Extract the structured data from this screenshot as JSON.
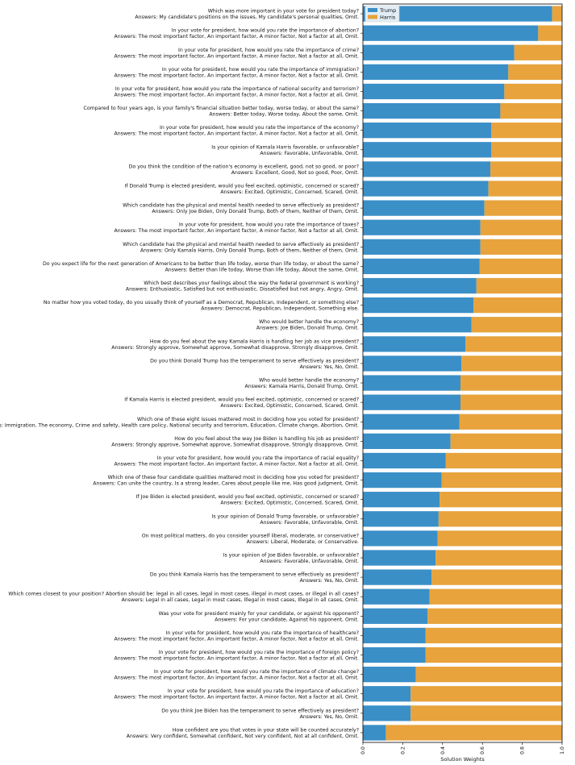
{
  "chart_data": {
    "type": "bar",
    "orientation": "horizontal",
    "stacked": true,
    "xlabel": "Solution Weights",
    "ylabel": "",
    "xlim": [
      0,
      1
    ],
    "xticks": [
      "0.0",
      "0.2",
      "0.4",
      "0.6",
      "0.8",
      "1.0"
    ],
    "legend_position": "top-left",
    "grid": false,
    "series": [
      {
        "name": "Trump",
        "color": "#3a8fc7"
      },
      {
        "name": "Harris",
        "color": "#e8a33d"
      }
    ],
    "categories": [
      {
        "question": "Which was more important in your vote for president today?",
        "answers": "Answers: My candidate's positions on the issues, My candidate's personal qualities, Omit.",
        "trump": 0.95
      },
      {
        "question": "In your vote for president, how would you rate the importance of abortion?",
        "answers": "Answers: The most important factor, An important factor, A minor factor, Not a factor at all, Omit.",
        "trump": 0.88
      },
      {
        "question": "In your vote for president, how would you rate the importance of crime?",
        "answers": "Answers: The most important factor, An important factor, A minor factor, Not a factor at all, Omit.",
        "trump": 0.76
      },
      {
        "question": "In your vote for president, how would you rate the importance of immigration?",
        "answers": "Answers: The most important factor, An important factor, A minor factor, Not a factor at all, Omit.",
        "trump": 0.73
      },
      {
        "question": "In your vote for president, how would you rate the importance of national security and terrorism?",
        "answers": "Answers: The most important factor, An important factor, A minor factor, Not a factor at all, Omit.",
        "trump": 0.71
      },
      {
        "question": "Compared to four years ago, is your family's financial situation better today, worse today, or about the same?",
        "answers": "Answers: Better today, Worse today, About the same, Omit.",
        "trump": 0.69
      },
      {
        "question": "In your vote for president, how would you rate the importance of the economy?",
        "answers": "Answers: The most important factor, An important factor, A minor factor, Not a factor at all, Omit.",
        "trump": 0.645
      },
      {
        "question": "Is your opinion of Kamala Harris favorable, or unfavorable?",
        "answers": "Answers: Favorable, Unfavorable, Omit.",
        "trump": 0.645
      },
      {
        "question": "Do you think the condition of the nation's economy is excellent, good, not so good, or poor?",
        "answers": "Answers: Excellent, Good, Not so good, Poor, Omit.",
        "trump": 0.64
      },
      {
        "question": "If Donald Trump is elected president, would you feel excited, optimistic, concerned or scared?",
        "answers": "Answers: Excited, Optimistic, Concerned, Scared, Omit.",
        "trump": 0.63
      },
      {
        "question": "Which candidate has the physical and mental health needed to serve effectively as president?",
        "answers": "Answers: Only Joe Biden, Only Donald Trump, Both of them, Neither of them, Omit.",
        "trump": 0.61
      },
      {
        "question": "In your vote for president, how would you rate the importance of taxes?",
        "answers": "Answers: The most important factor, An important factor, A minor factor, Not a factor at all, Omit.",
        "trump": 0.59
      },
      {
        "question": "Which candidate has the physical and mental health needed to serve effectively as president?",
        "answers": "Answers: Only Kamala Harris, Only Donald Trump, Both of them, Neither of them, Omit.",
        "trump": 0.59
      },
      {
        "question": "Do you expect life for the next generation of Americans to be better than life today, worse than life today, or about the same?",
        "answers": "Answers: Better than life today, Worse than life today, About the same, Omit.",
        "trump": 0.585
      },
      {
        "question": "Which best describes your feelings about the way the federal government is working?",
        "answers": "Answers: Enthusiastic, Satisfied but not enthusiastic, Dissatisfied but not angry, Angry, Omit.",
        "trump": 0.57
      },
      {
        "question": "No matter how you voted today, do you usually think of yourself as a Democrat, Republican, Independent, or something else?",
        "answers": "Answers: Democrat, Republican, Independent, Something else.",
        "trump": 0.555
      },
      {
        "question": "Who would better handle the economy?",
        "answers": "Answers: Joe Biden, Donald Trump, Omit.",
        "trump": 0.545
      },
      {
        "question": "How do you feel about the way Kamala Harris is handling her job as vice president?",
        "answers": "Answers: Strongly approve, Somewhat approve, Somewhat disapprove, Strongly disapprove, Omit.",
        "trump": 0.515
      },
      {
        "question": "Do you think Donald Trump has the temperament to serve effectively as president?",
        "answers": "Answers: Yes, No, Omit.",
        "trump": 0.495
      },
      {
        "question": "Who would better handle the economy?",
        "answers": "Answers: Kamala Harris, Donald Trump, Omit.",
        "trump": 0.49
      },
      {
        "question": "If Kamala Harris is elected president, would you feel excited, optimistic, concerned or scared?",
        "answers": "Answers: Excited, Optimistic, Concerned, Scared, Omit.",
        "trump": 0.49
      },
      {
        "question": "Which one of these eight issues mattered most in deciding how you voted for president?",
        "answers": "Answers: Immigration, The economy, Crime and safety, Health care policy, National security and terrorism, Education, Climate change, Abortion, Omit.",
        "trump": 0.485
      },
      {
        "question": "How do you feel about the way Joe Biden is handling his job as president?",
        "answers": "Answers: Strongly approve, Somewhat approve, Somewhat disapprove, Strongly disapprove, Omit.",
        "trump": 0.44
      },
      {
        "question": "In your vote for president, how would you rate the importance of racial equality?",
        "answers": "Answers: The most important factor, An important factor, A minor factor, Not a factor at all, Omit.",
        "trump": 0.415
      },
      {
        "question": "Which one of these four candidate qualities mattered most in deciding how you voted for president?",
        "answers": "Answers: Can unite the country, Is a strong leader, Cares about people like me, Has good judgment, Omit.",
        "trump": 0.395
      },
      {
        "question": "If Joe Biden is elected president, would you feel excited, optimistic, concerned or scared?",
        "answers": "Answers: Excited, Optimistic, Concerned, Scared, Omit.",
        "trump": 0.385
      },
      {
        "question": "Is your opinion of Donald Trump favorable, or unfavorable?",
        "answers": "Answers: Favorable, Unfavorable, Omit.",
        "trump": 0.38
      },
      {
        "question": "On most political matters, do you consider yourself liberal, moderate, or conservative?",
        "answers": "Answers: Liberal, Moderate, or Conservative.",
        "trump": 0.375
      },
      {
        "question": "Is your opinion of Joe Biden favorable, or unfavorable?",
        "answers": "Answers: Favorable, Unfavorable, Omit.",
        "trump": 0.365
      },
      {
        "question": "Do you think Kamala Harris has the temperament to serve effectively as president?",
        "answers": "Answers: Yes, No, Omit.",
        "trump": 0.345
      },
      {
        "question": "Which comes closest to your position? Abortion should be: legal in all cases, legal in most cases, illegal in most cases, or illegal in all cases?",
        "answers": "Answers: Legal in all cases, Legal in most cases, Illegal in most cases, Illegal in all cases, Omit.",
        "trump": 0.335
      },
      {
        "question": "Was your vote for president mainly for your candidate, or against his opponent?",
        "answers": "Answers: For your candidate, Against his opponent, Omit.",
        "trump": 0.325
      },
      {
        "question": "In your vote for president, how would you rate the importance of healthcare?",
        "answers": "Answers: The most important factor, An important factor, A minor factor, Not a factor at all, Omit.",
        "trump": 0.315
      },
      {
        "question": "In your vote for president, how would you rate the importance of foreign policy?",
        "answers": "Answers: The most important factor, An important factor, A minor factor, Not a factor at all, Omit.",
        "trump": 0.315
      },
      {
        "question": "In your vote for president, how would you rate the importance of climate change?",
        "answers": "Answers: The most important factor, An important factor, A minor factor, Not a factor at all, Omit.",
        "trump": 0.265
      },
      {
        "question": "In your vote for president, how would you rate the importance of education?",
        "answers": "Answers: The most important factor, An important factor, A minor factor, Not a factor at all, Omit.",
        "trump": 0.24
      },
      {
        "question": "Do you think Joe Biden has the temperament to serve effectively as president?",
        "answers": "Answers: Yes, No, Omit.",
        "trump": 0.24
      },
      {
        "question": "How confident are you that votes in your state will be counted accurately?",
        "answers": "Answers: Very confident, Somewhat confident, Not very confident, Not at all confident, Omit.",
        "trump": 0.115
      }
    ]
  }
}
